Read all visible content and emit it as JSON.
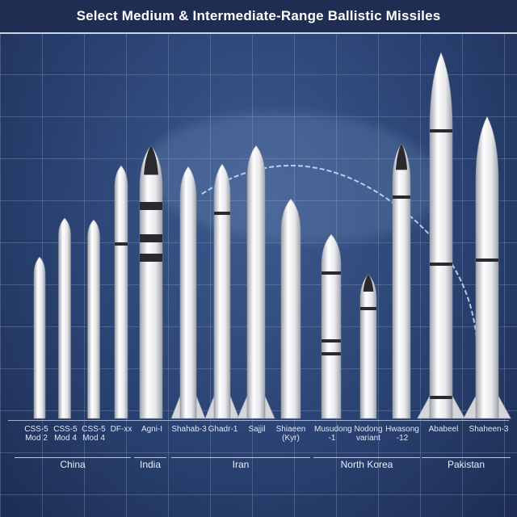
{
  "title": "Select Medium & Intermediate-Range Ballistic Missiles",
  "missiles": [
    {
      "name": "CSS-5\nMod 2"
    },
    {
      "name": "CSS-5\nMod 4"
    },
    {
      "name": "CSS-5\nMod 4"
    },
    {
      "name": "DF-xx"
    },
    {
      "name": "Agni-I"
    },
    {
      "name": "Shahab-3"
    },
    {
      "name": "Ghadr-1"
    },
    {
      "name": "Sajjil"
    },
    {
      "name": "Shiaeen\n(Kyr)"
    },
    {
      "name": "Musudong\n-1"
    },
    {
      "name": "Nodong\nvariant"
    },
    {
      "name": "Hwasong\n-12"
    },
    {
      "name": "Ababeel"
    },
    {
      "name": "Shaheen-3"
    }
  ],
  "countries": [
    {
      "name": "China"
    },
    {
      "name": "India"
    },
    {
      "name": "Iran"
    },
    {
      "name": "North Korea"
    },
    {
      "name": "Pakistan"
    }
  ],
  "colors": {
    "background": "#2a4272",
    "grid": "#bed2f5",
    "missile_body": "#e6e7ea",
    "missile_shade": "#9fa4ad",
    "band": "#2a2a2e",
    "trajectory": "#cfe0ff"
  }
}
